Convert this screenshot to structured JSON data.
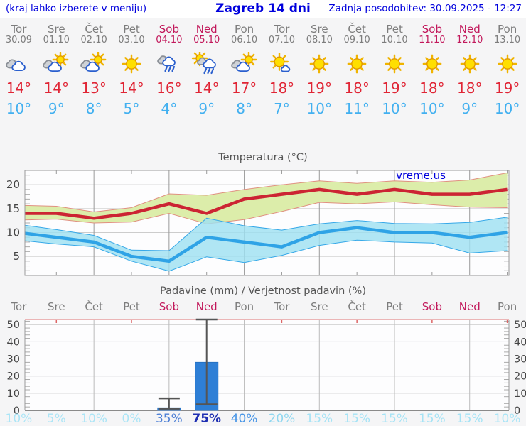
{
  "header": {
    "location_hint": "(kraj lahko izberete v meniju)",
    "title": "Zagreb 14 dni",
    "last_update": "Zadnja posodobitev: 30.09.2025 - 12:27"
  },
  "colors": {
    "header_text": "#0000dd",
    "weekday": "#7d7d7d",
    "weekend": "#c2185b",
    "tmax": "#e02535",
    "tmin": "#42b0f0",
    "bar_fill": "#2e7fd6",
    "whisker": "#555555"
  },
  "days": [
    {
      "name": "Tor",
      "date": "30.09",
      "weekend": false,
      "icon": "cloudy",
      "tmax": "14°",
      "tmin": "10°",
      "prob": "10%",
      "prob_color": "#abe5f6",
      "prob_bold": false
    },
    {
      "name": "Sre",
      "date": "01.10",
      "weekend": false,
      "icon": "partly-cloudy",
      "tmax": "14°",
      "tmin": "9°",
      "prob": "5%",
      "prob_color": "#abe5f6",
      "prob_bold": false
    },
    {
      "name": "Čet",
      "date": "02.10",
      "weekend": false,
      "icon": "partly-cloudy",
      "tmax": "13°",
      "tmin": "8°",
      "prob": "10%",
      "prob_color": "#abe5f6",
      "prob_bold": false
    },
    {
      "name": "Pet",
      "date": "03.10",
      "weekend": false,
      "icon": "sunny",
      "tmax": "14°",
      "tmin": "5°",
      "prob": "0%",
      "prob_color": "#abe5f6",
      "prob_bold": false
    },
    {
      "name": "Sob",
      "date": "04.10",
      "weekend": true,
      "icon": "rain",
      "tmax": "16°",
      "tmin": "4°",
      "prob": "35%",
      "prob_color": "#4d80d6",
      "prob_bold": false
    },
    {
      "name": "Ned",
      "date": "05.10",
      "weekend": true,
      "icon": "sun-rain",
      "tmax": "14°",
      "tmin": "9°",
      "prob": "75%",
      "prob_color": "#1e2fb2",
      "prob_bold": true
    },
    {
      "name": "Pon",
      "date": "06.10",
      "weekend": false,
      "icon": "partly-cloudy",
      "tmax": "17°",
      "tmin": "8°",
      "prob": "40%",
      "prob_color": "#4795e6",
      "prob_bold": false
    },
    {
      "name": "Tor",
      "date": "07.10",
      "weekend": false,
      "icon": "sun-small-cloud",
      "tmax": "18°",
      "tmin": "7°",
      "prob": "20%",
      "prob_color": "#8fd7f0",
      "prob_bold": false
    },
    {
      "name": "Sre",
      "date": "08.10",
      "weekend": false,
      "icon": "sunny",
      "tmax": "19°",
      "tmin": "10°",
      "prob": "15%",
      "prob_color": "#a5e3f5",
      "prob_bold": false
    },
    {
      "name": "Čet",
      "date": "09.10",
      "weekend": false,
      "icon": "sunny",
      "tmax": "18°",
      "tmin": "11°",
      "prob": "15%",
      "prob_color": "#a5e3f5",
      "prob_bold": false
    },
    {
      "name": "Pet",
      "date": "10.10",
      "weekend": false,
      "icon": "sunny",
      "tmax": "19°",
      "tmin": "10°",
      "prob": "15%",
      "prob_color": "#a5e3f5",
      "prob_bold": false
    },
    {
      "name": "Sob",
      "date": "11.10",
      "weekend": true,
      "icon": "sunny",
      "tmax": "18°",
      "tmin": "10°",
      "prob": "15%",
      "prob_color": "#a5e3f5",
      "prob_bold": false
    },
    {
      "name": "Ned",
      "date": "12.10",
      "weekend": true,
      "icon": "sunny",
      "tmax": "18°",
      "tmin": "9°",
      "prob": "15%",
      "prob_color": "#a5e3f5",
      "prob_bold": false
    },
    {
      "name": "Pon",
      "date": "13.10",
      "weekend": false,
      "icon": "sunny",
      "tmax": "19°",
      "tmin": "10°",
      "prob": "10%",
      "prob_color": "#abe5f6",
      "prob_bold": false
    }
  ],
  "chart_data": [
    {
      "id": "temperature",
      "type": "line",
      "title": "Temperatura (°C)",
      "watermark": "vreme.us",
      "ylim": [
        1,
        23
      ],
      "yticks": [
        5,
        10,
        15,
        20
      ],
      "grid_day_indices": [
        2,
        4,
        6,
        8,
        10,
        12
      ],
      "x_labels": [
        "Tor",
        "Sre",
        "Čet",
        "Pet",
        "Sob",
        "Ned",
        "Pon",
        "Tor",
        "Sre",
        "Čet",
        "Pet",
        "Sob",
        "Ned",
        "Pon"
      ],
      "series": [
        {
          "name": "max temperature",
          "color": "#cc2433",
          "values": [
            14,
            14,
            13,
            14,
            16,
            14,
            17,
            18,
            19,
            18,
            19,
            18,
            18,
            19
          ]
        },
        {
          "name": "min temperature",
          "color": "#2fa3e6",
          "values": [
            10,
            9,
            8,
            5,
            4,
            9,
            8,
            7,
            10,
            11,
            10,
            10,
            9,
            10
          ]
        }
      ],
      "bands": [
        {
          "name": "max range",
          "fill": "#dcedaa",
          "edge": "#e09080",
          "upper": [
            15.7,
            15.5,
            14.3,
            15.2,
            18.1,
            17.8,
            19.0,
            20.0,
            20.8,
            20.3,
            20.8,
            20.5,
            21.0,
            22.5
          ],
          "lower": [
            12.6,
            12.8,
            12.0,
            12.2,
            14.0,
            11.8,
            12.7,
            14.4,
            16.3,
            16.0,
            16.4,
            15.8,
            15.3,
            15.2
          ]
        },
        {
          "name": "min range",
          "fill": "#9fe0f2",
          "edge": "#35a8e8",
          "upper": [
            11.7,
            10.6,
            9.4,
            6.3,
            6.2,
            13.0,
            11.4,
            10.5,
            11.8,
            12.5,
            11.9,
            11.8,
            12.1,
            13.2
          ],
          "lower": [
            8.4,
            7.6,
            7.0,
            4.0,
            1.9,
            4.9,
            3.7,
            5.2,
            7.3,
            8.4,
            8.0,
            7.8,
            5.7,
            6.2
          ]
        }
      ]
    },
    {
      "id": "precipitation",
      "type": "bar",
      "title": "Padavine (mm) / Verjetnost padavin (%)",
      "ylim": [
        0,
        53
      ],
      "yticks": [
        0,
        10,
        20,
        30,
        40,
        50
      ],
      "grid_day_indices": [
        2,
        4,
        6,
        8,
        10,
        12
      ],
      "x_labels": [
        "Tor",
        "Sre",
        "Čet",
        "Pet",
        "Sob",
        "Ned",
        "Pon",
        "Tor",
        "Sre",
        "Čet",
        "Pet",
        "Sob",
        "Ned",
        "Pon"
      ],
      "bars": [
        {
          "day_index": 4,
          "amount_mm": 1.5,
          "range_low_mm": 1,
          "range_high_mm": 7
        },
        {
          "day_index": 5,
          "amount_mm": 28,
          "range_low_mm": 3.5,
          "range_high_mm": 53
        }
      ],
      "probabilities_pct": [
        10,
        5,
        10,
        0,
        35,
        75,
        40,
        20,
        15,
        15,
        15,
        15,
        15,
        10
      ]
    }
  ]
}
